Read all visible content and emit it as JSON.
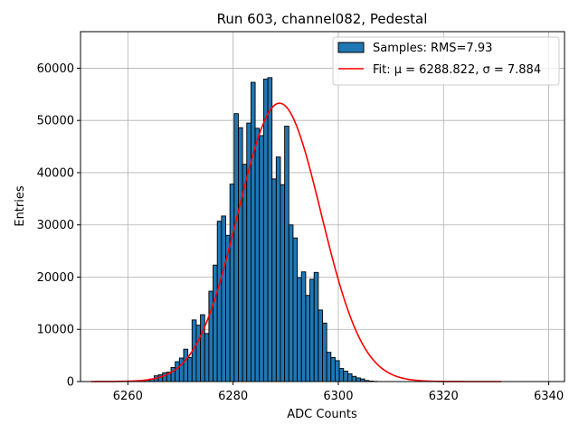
{
  "chart_data": {
    "type": "bar",
    "title": "Run 603, channel082, Pedestal",
    "xlabel": "ADC Counts",
    "ylabel": "Entries",
    "xlim": [
      6251,
      6343
    ],
    "ylim": [
      0,
      67000
    ],
    "xticks": [
      6260,
      6280,
      6300,
      6320,
      6340
    ],
    "yticks": [
      0,
      10000,
      20000,
      30000,
      40000,
      50000,
      60000
    ],
    "grid": true,
    "legend_position": "top-right",
    "bar_color": "#1f77b4",
    "fit_color": "#ff0000",
    "histogram": {
      "name": "Samples: RMS=7.93",
      "bin_width": 0.8,
      "x": [
        6253.4,
        6254.2,
        6255.0,
        6255.8,
        6256.6,
        6257.4,
        6258.2,
        6259.0,
        6259.8,
        6260.6,
        6261.4,
        6262.2,
        6263.0,
        6263.8,
        6264.6,
        6265.4,
        6266.2,
        6267.0,
        6267.8,
        6268.6,
        6269.4,
        6270.2,
        6271.0,
        6271.8,
        6272.6,
        6273.4,
        6274.2,
        6275.0,
        6275.8,
        6276.6,
        6277.4,
        6278.2,
        6279.0,
        6279.8,
        6280.6,
        6281.4,
        6282.2,
        6283.0,
        6283.8,
        6284.6,
        6285.4,
        6286.2,
        6287.0,
        6287.8,
        6288.6,
        6289.4,
        6290.2,
        6291.0,
        6291.8,
        6292.6,
        6293.4,
        6294.2,
        6295.0,
        6295.8,
        6296.6,
        6297.4,
        6298.2,
        6299.0,
        6299.8,
        6300.6,
        6301.4,
        6302.2,
        6303.0,
        6303.8,
        6304.6,
        6305.4,
        6306.2,
        6307.0,
        6307.8,
        6308.6,
        6309.4,
        6310.2,
        6311.0,
        6311.8,
        6312.6,
        6313.4,
        6314.2,
        6315.0,
        6315.8,
        6316.6,
        6317.4,
        6318.2,
        6319.0,
        6319.8,
        6320.6,
        6321.4,
        6322.2,
        6323.0,
        6323.8,
        6324.6,
        6325.4,
        6326.2,
        6327.0,
        6327.8,
        6328.6,
        6329.4,
        6330.2,
        6331.0
      ],
      "values": [
        0,
        0,
        0,
        0,
        0,
        0,
        0,
        0,
        0,
        0,
        0,
        0,
        100,
        300,
        500,
        1100,
        1300,
        1700,
        1800,
        2700,
        3800,
        4500,
        6200,
        4600,
        11800,
        10800,
        12800,
        9200,
        17300,
        22300,
        30700,
        31700,
        28000,
        37800,
        51300,
        48600,
        41600,
        49500,
        57300,
        48500,
        47100,
        57900,
        58200,
        38800,
        43000,
        37700,
        48900,
        30000,
        27500,
        19900,
        21000,
        16500,
        19600,
        20900,
        13700,
        11200,
        5600,
        4600,
        4000,
        2500,
        2000,
        1500,
        1000,
        700,
        500,
        200,
        100,
        50,
        0,
        0,
        0,
        0,
        0,
        0,
        0,
        0,
        0,
        0,
        0,
        0,
        0,
        0,
        0,
        0,
        0,
        0,
        0,
        0,
        0,
        0,
        0,
        0,
        0,
        0,
        0,
        0,
        0,
        0
      ]
    },
    "fit": {
      "name": "Fit: μ = 6288.822, σ = 7.884",
      "mu": 6288.822,
      "sigma": 7.884,
      "amplitude": 53300,
      "x_range": [
        6253,
        6331
      ]
    }
  }
}
